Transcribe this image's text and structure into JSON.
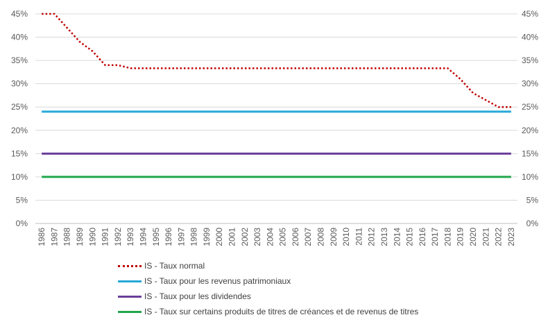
{
  "chart_data": {
    "type": "line",
    "title": "",
    "xlabel": "",
    "ylabel": "",
    "x": [
      "1986",
      "1987",
      "1988",
      "1989",
      "1990",
      "1991",
      "1992",
      "1993",
      "1994",
      "1995",
      "1996",
      "1997",
      "1998",
      "1999",
      "2000",
      "2001",
      "2002",
      "2003",
      "2004",
      "2005",
      "2006",
      "2007",
      "2008",
      "2009",
      "2010",
      "2011",
      "2012",
      "2013",
      "2014",
      "2015",
      "2016",
      "2017",
      "2018",
      "2019",
      "2020",
      "2021",
      "2022",
      "2023"
    ],
    "ylim": [
      0,
      0.45
    ],
    "yticks": [
      "0%",
      "5%",
      "10%",
      "15%",
      "20%",
      "25%",
      "30%",
      "35%",
      "40%",
      "45%"
    ],
    "secondary_axis": true,
    "grid": true,
    "legend_position": "bottom",
    "series": [
      {
        "name": "IS - Taux normal",
        "color": "#c00000",
        "style": "dotted",
        "values": [
          0.45,
          0.45,
          0.42,
          0.39,
          0.37,
          0.34,
          0.34,
          0.3333,
          0.3333,
          0.3333,
          0.3333,
          0.3333,
          0.3333,
          0.3333,
          0.3333,
          0.3333,
          0.3333,
          0.3333,
          0.3333,
          0.3333,
          0.3333,
          0.3333,
          0.3333,
          0.3333,
          0.3333,
          0.3333,
          0.3333,
          0.3333,
          0.3333,
          0.3333,
          0.3333,
          0.3333,
          0.3333,
          0.31,
          0.28,
          0.265,
          0.25,
          0.25
        ]
      },
      {
        "name": "IS - Taux pour les revenus patrimoniaux",
        "color": "#27a8d8",
        "style": "solid",
        "values": [
          0.24,
          0.24,
          0.24,
          0.24,
          0.24,
          0.24,
          0.24,
          0.24,
          0.24,
          0.24,
          0.24,
          0.24,
          0.24,
          0.24,
          0.24,
          0.24,
          0.24,
          0.24,
          0.24,
          0.24,
          0.24,
          0.24,
          0.24,
          0.24,
          0.24,
          0.24,
          0.24,
          0.24,
          0.24,
          0.24,
          0.24,
          0.24,
          0.24,
          0.24,
          0.24,
          0.24,
          0.24,
          0.24
        ]
      },
      {
        "name": "IS - Taux pour les dividendes",
        "color": "#6a3d9a",
        "style": "solid",
        "values": [
          0.15,
          0.15,
          0.15,
          0.15,
          0.15,
          0.15,
          0.15,
          0.15,
          0.15,
          0.15,
          0.15,
          0.15,
          0.15,
          0.15,
          0.15,
          0.15,
          0.15,
          0.15,
          0.15,
          0.15,
          0.15,
          0.15,
          0.15,
          0.15,
          0.15,
          0.15,
          0.15,
          0.15,
          0.15,
          0.15,
          0.15,
          0.15,
          0.15,
          0.15,
          0.15,
          0.15,
          0.15,
          0.15
        ]
      },
      {
        "name": "IS - Taux sur certains produits de titres de créances et de revenus de titres",
        "color": "#1fa64a",
        "style": "solid",
        "values": [
          0.1,
          0.1,
          0.1,
          0.1,
          0.1,
          0.1,
          0.1,
          0.1,
          0.1,
          0.1,
          0.1,
          0.1,
          0.1,
          0.1,
          0.1,
          0.1,
          0.1,
          0.1,
          0.1,
          0.1,
          0.1,
          0.1,
          0.1,
          0.1,
          0.1,
          0.1,
          0.1,
          0.1,
          0.1,
          0.1,
          0.1,
          0.1,
          0.1,
          0.1,
          0.1,
          0.1,
          0.1,
          0.1
        ]
      }
    ]
  }
}
